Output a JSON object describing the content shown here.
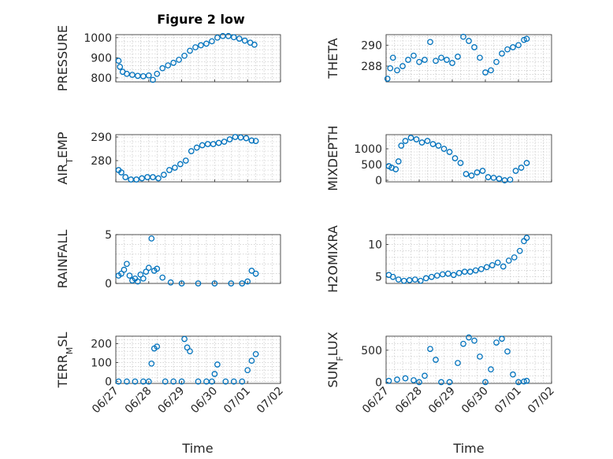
{
  "title": "Figure 2 low",
  "x_axis_label": "Time",
  "x_ticks": [
    "06/27",
    "06/28",
    "06/29",
    "06/30",
    "07/01",
    "07/02"
  ],
  "marker_color": "#0072BD",
  "chart_data": [
    {
      "type": "scatter",
      "id": "pressure",
      "ylabel": "PRESSURE",
      "ylim": [
        780,
        1015
      ],
      "yticks": [
        800,
        900,
        1000
      ],
      "x": [
        "06/27 02:00",
        "06/27 03:00",
        "06/27 05:00",
        "06/27 08:00",
        "06/27 12:00",
        "06/27 16:00",
        "06/27 20:00",
        "06/28 00:00",
        "06/28 03:00",
        "06/28 06:00",
        "06/28 10:00",
        "06/28 14:00",
        "06/28 18:00",
        "06/28 22:00",
        "06/29 02:00",
        "06/29 06:00",
        "06/29 10:00",
        "06/29 14:00",
        "06/29 18:00",
        "06/29 22:00",
        "06/30 02:00",
        "06/30 06:00",
        "06/30 10:00",
        "06/30 14:00",
        "06/30 18:00",
        "06/30 22:00",
        "07/01 02:00",
        "07/01 05:00"
      ],
      "y": [
        885,
        855,
        830,
        820,
        815,
        810,
        808,
        812,
        790,
        820,
        848,
        862,
        875,
        890,
        910,
        935,
        952,
        962,
        970,
        982,
        1000,
        1008,
        1008,
        1002,
        995,
        985,
        975,
        965
      ]
    },
    {
      "type": "scatter",
      "id": "theta",
      "ylabel": "THETA",
      "ylim": [
        286.5,
        291
      ],
      "yticks": [
        288,
        290
      ],
      "x": [
        "06/27 01:00",
        "06/27 03:00",
        "06/27 05:00",
        "06/27 08:00",
        "06/27 12:00",
        "06/27 16:00",
        "06/27 20:00",
        "06/28 00:00",
        "06/28 04:00",
        "06/28 08:00",
        "06/28 12:00",
        "06/28 16:00",
        "06/28 20:00",
        "06/29 00:00",
        "06/29 04:00",
        "06/29 08:00",
        "06/29 12:00",
        "06/29 16:00",
        "06/29 20:00",
        "06/30 00:00",
        "06/30 04:00",
        "06/30 08:00",
        "06/30 12:00",
        "06/30 16:00",
        "06/30 20:00",
        "07/01 00:00",
        "07/01 04:00",
        "07/01 06:00"
      ],
      "y": [
        286.8,
        287.8,
        288.8,
        287.6,
        288.0,
        288.6,
        289.0,
        288.4,
        288.6,
        290.3,
        288.5,
        288.8,
        288.6,
        288.3,
        288.9,
        290.8,
        290.4,
        289.8,
        288.8,
        287.4,
        287.6,
        288.4,
        289.2,
        289.6,
        289.8,
        290.0,
        290.5,
        290.6
      ]
    },
    {
      "type": "scatter",
      "id": "air_temp",
      "ylabel": "AIR_TEMP",
      "ylim": [
        271,
        291
      ],
      "yticks": [
        280,
        290
      ],
      "x": [
        "06/27 02:00",
        "06/27 04:00",
        "06/27 07:00",
        "06/27 11:00",
        "06/27 15:00",
        "06/27 19:00",
        "06/27 23:00",
        "06/28 03:00",
        "06/28 07:00",
        "06/28 11:00",
        "06/28 15:00",
        "06/28 19:00",
        "06/28 23:00",
        "06/29 03:00",
        "06/29 07:00",
        "06/29 11:00",
        "06/29 15:00",
        "06/29 19:00",
        "06/29 23:00",
        "06/30 03:00",
        "06/30 07:00",
        "06/30 11:00",
        "06/30 15:00",
        "06/30 19:00",
        "06/30 23:00",
        "07/01 03:00",
        "07/01 06:00"
      ],
      "y": [
        276,
        275,
        273,
        272,
        272,
        272.5,
        273,
        273,
        272.5,
        274,
        276,
        277,
        278.5,
        280,
        284,
        285.5,
        286.5,
        287,
        287,
        287.5,
        288,
        289,
        290,
        289.8,
        289.5,
        288.5,
        288.3
      ]
    },
    {
      "type": "scatter",
      "id": "mixdepth",
      "ylabel": "MIXDEPTH",
      "ylim": [
        -50,
        1450
      ],
      "yticks": [
        0,
        500,
        1000
      ],
      "x": [
        "06/27 02:00",
        "06/27 04:00",
        "06/27 07:00",
        "06/27 09:00",
        "06/27 11:00",
        "06/27 14:00",
        "06/27 18:00",
        "06/27 22:00",
        "06/28 02:00",
        "06/28 06:00",
        "06/28 10:00",
        "06/28 14:00",
        "06/28 18:00",
        "06/28 22:00",
        "06/29 02:00",
        "06/29 06:00",
        "06/29 10:00",
        "06/29 14:00",
        "06/29 18:00",
        "06/29 22:00",
        "06/30 02:00",
        "06/30 06:00",
        "06/30 10:00",
        "06/30 14:00",
        "06/30 18:00",
        "06/30 22:00",
        "07/01 02:00",
        "07/01 06:00"
      ],
      "y": [
        450,
        400,
        350,
        600,
        1100,
        1250,
        1350,
        1300,
        1200,
        1250,
        1150,
        1100,
        1000,
        900,
        700,
        550,
        200,
        150,
        250,
        300,
        100,
        80,
        50,
        0,
        20,
        300,
        400,
        550
      ]
    },
    {
      "type": "scatter",
      "id": "rainfall",
      "ylabel": "RAINFALL",
      "ylim": [
        0,
        5
      ],
      "yticks": [
        0,
        5
      ],
      "x": [
        "06/27 02:00",
        "06/27 04:00",
        "06/27 06:00",
        "06/27 08:00",
        "06/27 10:00",
        "06/27 12:00",
        "06/27 14:00",
        "06/27 16:00",
        "06/27 18:00",
        "06/27 20:00",
        "06/27 22:00",
        "06/28 00:00",
        "06/28 02:00",
        "06/28 04:00",
        "06/28 06:00",
        "06/28 10:00",
        "06/28 16:00",
        "06/29 00:00",
        "06/29 12:00",
        "06/30 00:00",
        "06/30 12:00",
        "06/30 20:00",
        "07/01 00:00",
        "07/01 03:00",
        "07/01 06:00"
      ],
      "y": [
        0.8,
        1.0,
        1.4,
        2.0,
        0.8,
        0.3,
        0.5,
        0.2,
        0.9,
        0.5,
        1.2,
        1.6,
        4.6,
        1.3,
        1.5,
        0.6,
        0.1,
        0,
        0,
        0,
        0,
        0,
        0.2,
        1.3,
        1.0
      ]
    },
    {
      "type": "scatter",
      "id": "h2omixra",
      "ylabel": "H2OMIXRA",
      "ylim": [
        4,
        11.5
      ],
      "yticks": [
        5,
        10
      ],
      "x": [
        "06/27 02:00",
        "06/27 05:00",
        "06/27 09:00",
        "06/27 13:00",
        "06/27 17:00",
        "06/27 21:00",
        "06/28 01:00",
        "06/28 05:00",
        "06/28 09:00",
        "06/28 13:00",
        "06/28 17:00",
        "06/28 21:00",
        "06/29 01:00",
        "06/29 05:00",
        "06/29 09:00",
        "06/29 13:00",
        "06/29 17:00",
        "06/29 21:00",
        "06/30 01:00",
        "06/30 05:00",
        "06/30 09:00",
        "06/30 13:00",
        "06/30 17:00",
        "06/30 21:00",
        "07/01 01:00",
        "07/01 04:00",
        "07/01 06:00"
      ],
      "y": [
        5.3,
        5.0,
        4.6,
        4.4,
        4.5,
        4.6,
        4.4,
        4.8,
        5.0,
        5.2,
        5.4,
        5.5,
        5.3,
        5.6,
        5.8,
        5.8,
        6.0,
        6.2,
        6.5,
        6.8,
        7.2,
        6.6,
        7.5,
        8.0,
        9.0,
        10.5,
        11.0
      ]
    },
    {
      "type": "scatter",
      "id": "terr_msl",
      "ylabel": "TERR_MSL",
      "ylim": [
        -10,
        240
      ],
      "yticks": [
        0,
        100,
        200
      ],
      "x": [
        "06/27 02:00",
        "06/27 08:00",
        "06/27 14:00",
        "06/27 20:00",
        "06/28 00:00",
        "06/28 02:00",
        "06/28 04:00",
        "06/28 06:00",
        "06/28 12:00",
        "06/28 18:00",
        "06/29 00:00",
        "06/29 02:00",
        "06/29 04:00",
        "06/29 06:00",
        "06/29 12:00",
        "06/29 18:00",
        "06/29 22:00",
        "06/30 00:00",
        "06/30 02:00",
        "06/30 08:00",
        "06/30 14:00",
        "06/30 20:00",
        "07/01 00:00",
        "07/01 03:00",
        "07/01 06:00"
      ],
      "y": [
        0,
        0,
        0,
        0,
        0,
        95,
        175,
        185,
        0,
        0,
        0,
        225,
        180,
        160,
        0,
        0,
        0,
        40,
        90,
        0,
        0,
        0,
        60,
        110,
        145
      ]
    },
    {
      "type": "scatter",
      "id": "sun_flux",
      "ylabel": "SUN_FLUX",
      "ylim": [
        -20,
        720
      ],
      "yticks": [
        0,
        500
      ],
      "x": [
        "06/27 02:00",
        "06/27 08:00",
        "06/27 14:00",
        "06/27 20:00",
        "06/28 00:00",
        "06/28 04:00",
        "06/28 08:00",
        "06/28 12:00",
        "06/28 16:00",
        "06/28 22:00",
        "06/29 04:00",
        "06/29 08:00",
        "06/29 12:00",
        "06/29 16:00",
        "06/29 20:00",
        "06/30 00:00",
        "06/30 04:00",
        "06/30 08:00",
        "06/30 12:00",
        "06/30 16:00",
        "06/30 20:00",
        "07/01 00:00",
        "07/01 04:00",
        "07/01 06:00"
      ],
      "y": [
        20,
        40,
        60,
        30,
        0,
        100,
        520,
        350,
        0,
        0,
        300,
        600,
        700,
        650,
        400,
        0,
        200,
        620,
        680,
        480,
        120,
        0,
        10,
        20
      ]
    }
  ]
}
